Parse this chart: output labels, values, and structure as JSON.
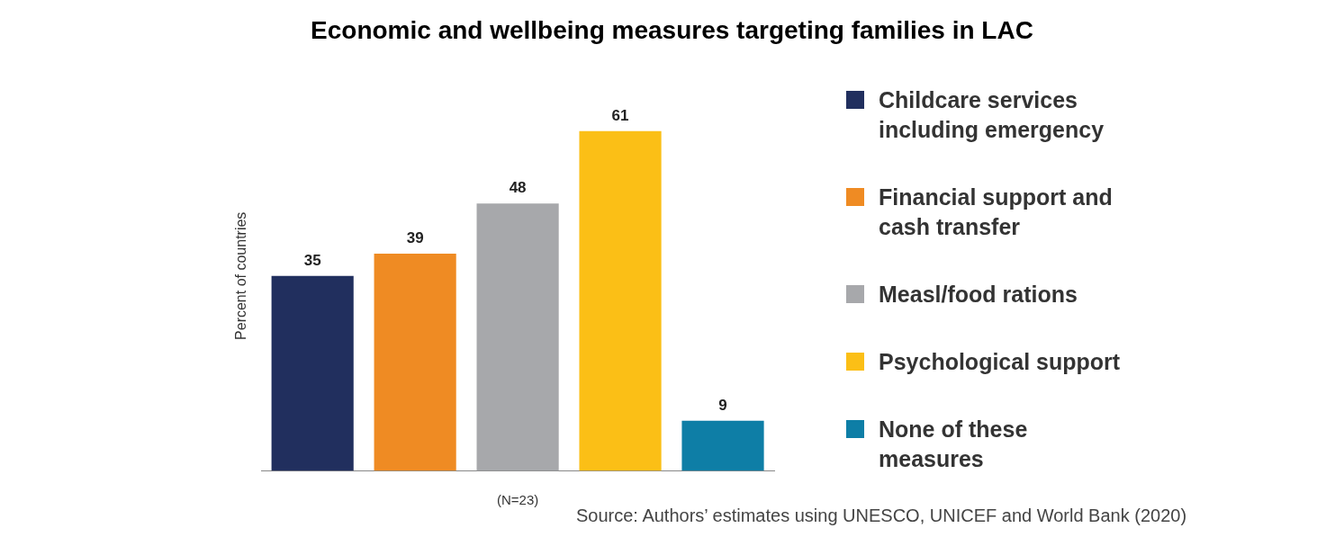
{
  "chart_data": {
    "type": "bar",
    "title": "Economic and wellbeing measures targeting families in LAC",
    "xlabel": "(N=23)",
    "ylabel": "Percent of countries",
    "categories": [
      null
    ],
    "series": [
      {
        "name": "Childcare services including emergency",
        "color": "#212f5e",
        "values": [
          35
        ]
      },
      {
        "name": "Financial support and cash transfer",
        "color": "#ef8b23",
        "values": [
          39
        ]
      },
      {
        "name": "Measl/food rations",
        "color": "#a7a8ab",
        "values": [
          48
        ]
      },
      {
        "name": "Psychological support",
        "color": "#fbbf16",
        "values": [
          61
        ]
      },
      {
        "name": "None of these measures",
        "color": "#0e7ea6",
        "values": [
          9
        ]
      }
    ],
    "data_labels": true,
    "legend": "right",
    "grid": false,
    "annotations": [
      "Source: Authors’ estimates using UNESCO, UNICEF and World Bank (2020)"
    ]
  }
}
